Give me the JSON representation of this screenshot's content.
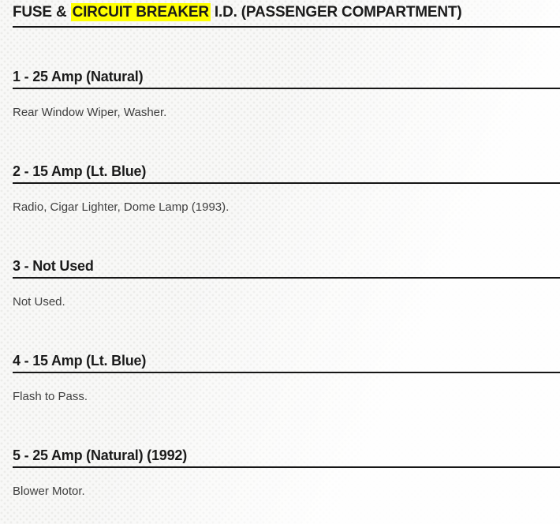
{
  "page": {
    "title": {
      "prefix": "FUSE & ",
      "highlight": "CIRCUIT BREAKER",
      "suffix": " I.D. (PASSENGER COMPARTMENT)"
    },
    "sections": [
      {
        "heading": "1 - 25 Amp (Natural)",
        "description": "Rear Window Wiper, Washer."
      },
      {
        "heading": "2 - 15 Amp (Lt. Blue)",
        "description": "Radio, Cigar Lighter, Dome Lamp (1993)."
      },
      {
        "heading": "3 - Not Used",
        "description": "Not Used."
      },
      {
        "heading": "4 - 15 Amp (Lt. Blue)",
        "description": "Flash to Pass."
      },
      {
        "heading": "5 - 25 Amp (Natural) (1992)",
        "description": "Blower Motor."
      }
    ],
    "colors": {
      "highlight": "#ffff00",
      "heading_text": "#1b1b1b",
      "body_text": "#3f3f3f",
      "rule": "#161616"
    }
  }
}
